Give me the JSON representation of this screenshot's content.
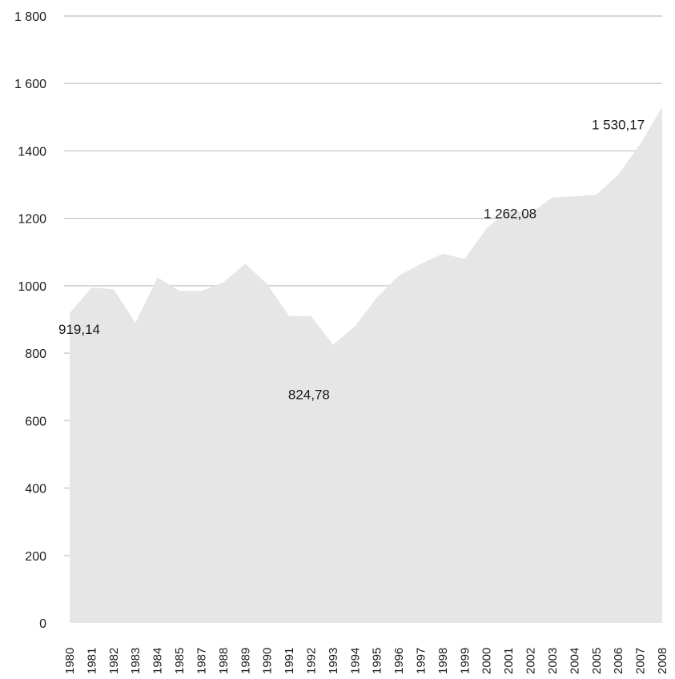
{
  "chart_data": {
    "type": "area",
    "title": "",
    "xlabel": "",
    "ylabel": "",
    "ylim": [
      0,
      1800
    ],
    "y_ticks": [
      {
        "value": 0,
        "label": "0"
      },
      {
        "value": 200,
        "label": "200"
      },
      {
        "value": 400,
        "label": "400"
      },
      {
        "value": 600,
        "label": "600"
      },
      {
        "value": 800,
        "label": "800"
      },
      {
        "value": 1000,
        "label": "1000"
      },
      {
        "value": 1200,
        "label": "1200"
      },
      {
        "value": 1400,
        "label": "1400"
      },
      {
        "value": 1600,
        "label": "1 600"
      },
      {
        "value": 1800,
        "label": "1 800"
      }
    ],
    "grid": true,
    "legend": "none",
    "categories": [
      "1980",
      "1981",
      "1982",
      "1983",
      "1984",
      "1985",
      "1987",
      "1988",
      "1989",
      "1990",
      "1991",
      "1992",
      "1993",
      "1994",
      "1995",
      "1996",
      "1997",
      "1998",
      "1999",
      "2000",
      "2001",
      "2002",
      "2003",
      "2004",
      "2005",
      "2006",
      "2007",
      "2008"
    ],
    "values": [
      919.14,
      995,
      990,
      890,
      1025,
      985,
      985,
      1010,
      1065,
      1005,
      910,
      910,
      824.78,
      880,
      965,
      1030,
      1065,
      1095,
      1080,
      1170,
      1225,
      1215,
      1262.08,
      1265,
      1270,
      1330,
      1420,
      1530.17
    ],
    "data_labels": [
      {
        "index": 0,
        "text": "919,14"
      },
      {
        "index": 12,
        "text": "824,78"
      },
      {
        "index": 22,
        "text": "1 262,08"
      },
      {
        "index": 27,
        "text": "1 530,17"
      }
    ],
    "colors": {
      "area": "#e6e6e6",
      "grid": "#c8c8c8",
      "text": "#1a1a1a"
    }
  }
}
